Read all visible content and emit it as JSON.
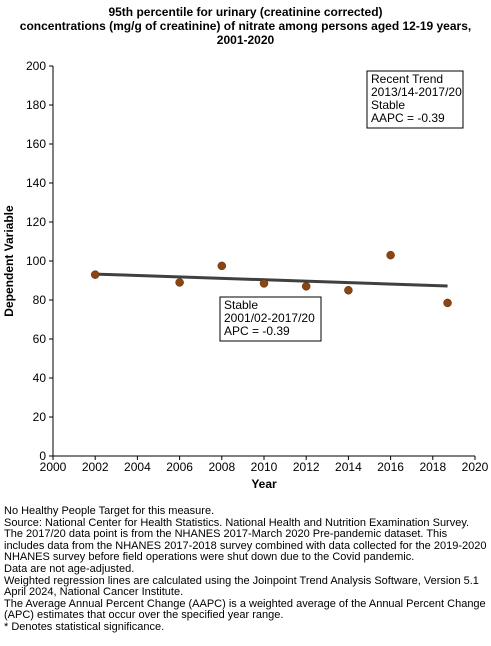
{
  "chart_data": {
    "type": "scatter",
    "title": [
      "95th percentile for urinary (creatinine corrected)",
      "concentrations (mg/g of creatinine) of nitrate among  persons aged 12-19 years,",
      "2001-2020"
    ],
    "xlabel": "Year",
    "ylabel": "Dependent Variable",
    "xlim": [
      2000,
      2020
    ],
    "ylim": [
      0,
      200
    ],
    "xticks": [
      2000,
      2002,
      2004,
      2006,
      2008,
      2010,
      2012,
      2014,
      2016,
      2018,
      2020
    ],
    "yticks": [
      0,
      20,
      40,
      60,
      80,
      100,
      120,
      140,
      160,
      180,
      200
    ],
    "grid": false,
    "points": [
      {
        "x": 2002,
        "y": 93
      },
      {
        "x": 2006,
        "y": 89
      },
      {
        "x": 2008,
        "y": 97.5
      },
      {
        "x": 2010,
        "y": 88.5
      },
      {
        "x": 2012,
        "y": 87
      },
      {
        "x": 2014,
        "y": 85
      },
      {
        "x": 2016,
        "y": 103
      },
      {
        "x": 2018.7,
        "y": 78.5
      }
    ],
    "trend_line": [
      {
        "x": 2002,
        "y": 93.3
      },
      {
        "x": 2018.7,
        "y": 87.2
      }
    ],
    "point_color": "#8B4513",
    "line_color": "#404040",
    "annotations": [
      {
        "lines": [
          "Recent Trend",
          "2013/14-2017/20",
          "Stable",
          "AAPC = -0.39"
        ],
        "anchor": "top-right"
      },
      {
        "lines": [
          "Stable",
          "2001/02-2017/20",
          "APC = -0.39"
        ],
        "anchor": "center"
      }
    ]
  },
  "footnotes": [
    "No Healthy People Target for this measure.",
    "Source: National Center for Health Statistics. National Health and Nutrition Examination Survey.",
    "The 2017/20 data point is from the NHANES 2017-March 2020 Pre-pandemic dataset. This includes data from the NHANES 2017-2018 survey combined with data collected for the 2019-2020 NHANES survey before field operations were shut down due to the Covid pandemic.",
    "Data are not age-adjusted.",
    "Weighted regression lines are calculated using the Joinpoint Trend Analysis Software, Version 5.1 April 2024, National Cancer Institute.",
    "The Average Annual Percent Change (AAPC) is a weighted average of the Annual Percent Change (APC) estimates that occur over the specified year range.",
    "* Denotes statistical significance."
  ]
}
